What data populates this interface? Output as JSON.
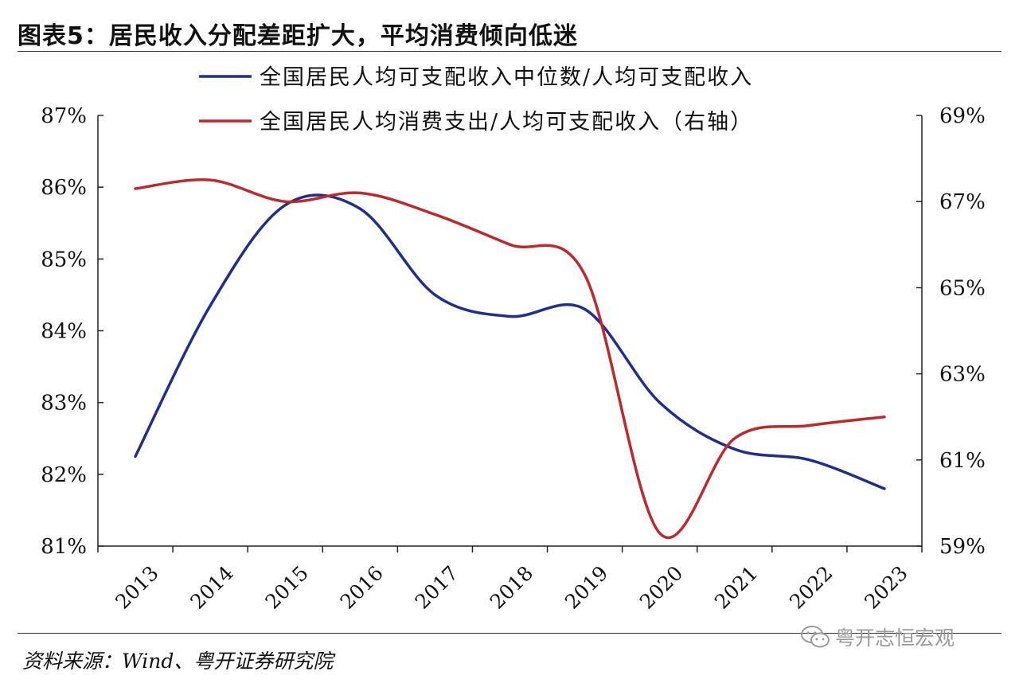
{
  "title": "图表5：居民收入分配差距扩大，平均消费倾向低迷",
  "source": "资料来源：Wind、粤开证券研究院",
  "watermark": "粤开志恒宏观",
  "watermark_icon": "wechat-icon",
  "chart_data": {
    "type": "line",
    "categories": [
      "2013",
      "2014",
      "2015",
      "2016",
      "2017",
      "2018",
      "2019",
      "2020",
      "2021",
      "2022",
      "2023"
    ],
    "left_axis": {
      "ticks": [
        "87%",
        "86%",
        "85%",
        "84%",
        "83%",
        "82%",
        "81%"
      ],
      "ylim": [
        81,
        87
      ]
    },
    "right_axis": {
      "ticks": [
        "69%",
        "67%",
        "65%",
        "63%",
        "61%",
        "59%"
      ],
      "ylim": [
        59,
        69
      ]
    },
    "grid": false,
    "legend_position": "top-center",
    "series": [
      {
        "name": "全国居民人均可支配收入中位数/人均可支配收入",
        "axis": "left",
        "color": "#1f2f8f",
        "values": [
          82.25,
          84.35,
          85.75,
          85.7,
          84.5,
          84.2,
          84.3,
          83.0,
          82.35,
          82.2,
          81.8
        ]
      },
      {
        "name": "全国居民人均消费支出/人均可支配收入（右轴）",
        "axis": "right",
        "color": "#c0282d",
        "values": [
          67.3,
          67.5,
          67.0,
          67.2,
          66.7,
          66.0,
          65.3,
          59.3,
          61.5,
          61.8,
          62.0
        ]
      }
    ]
  }
}
